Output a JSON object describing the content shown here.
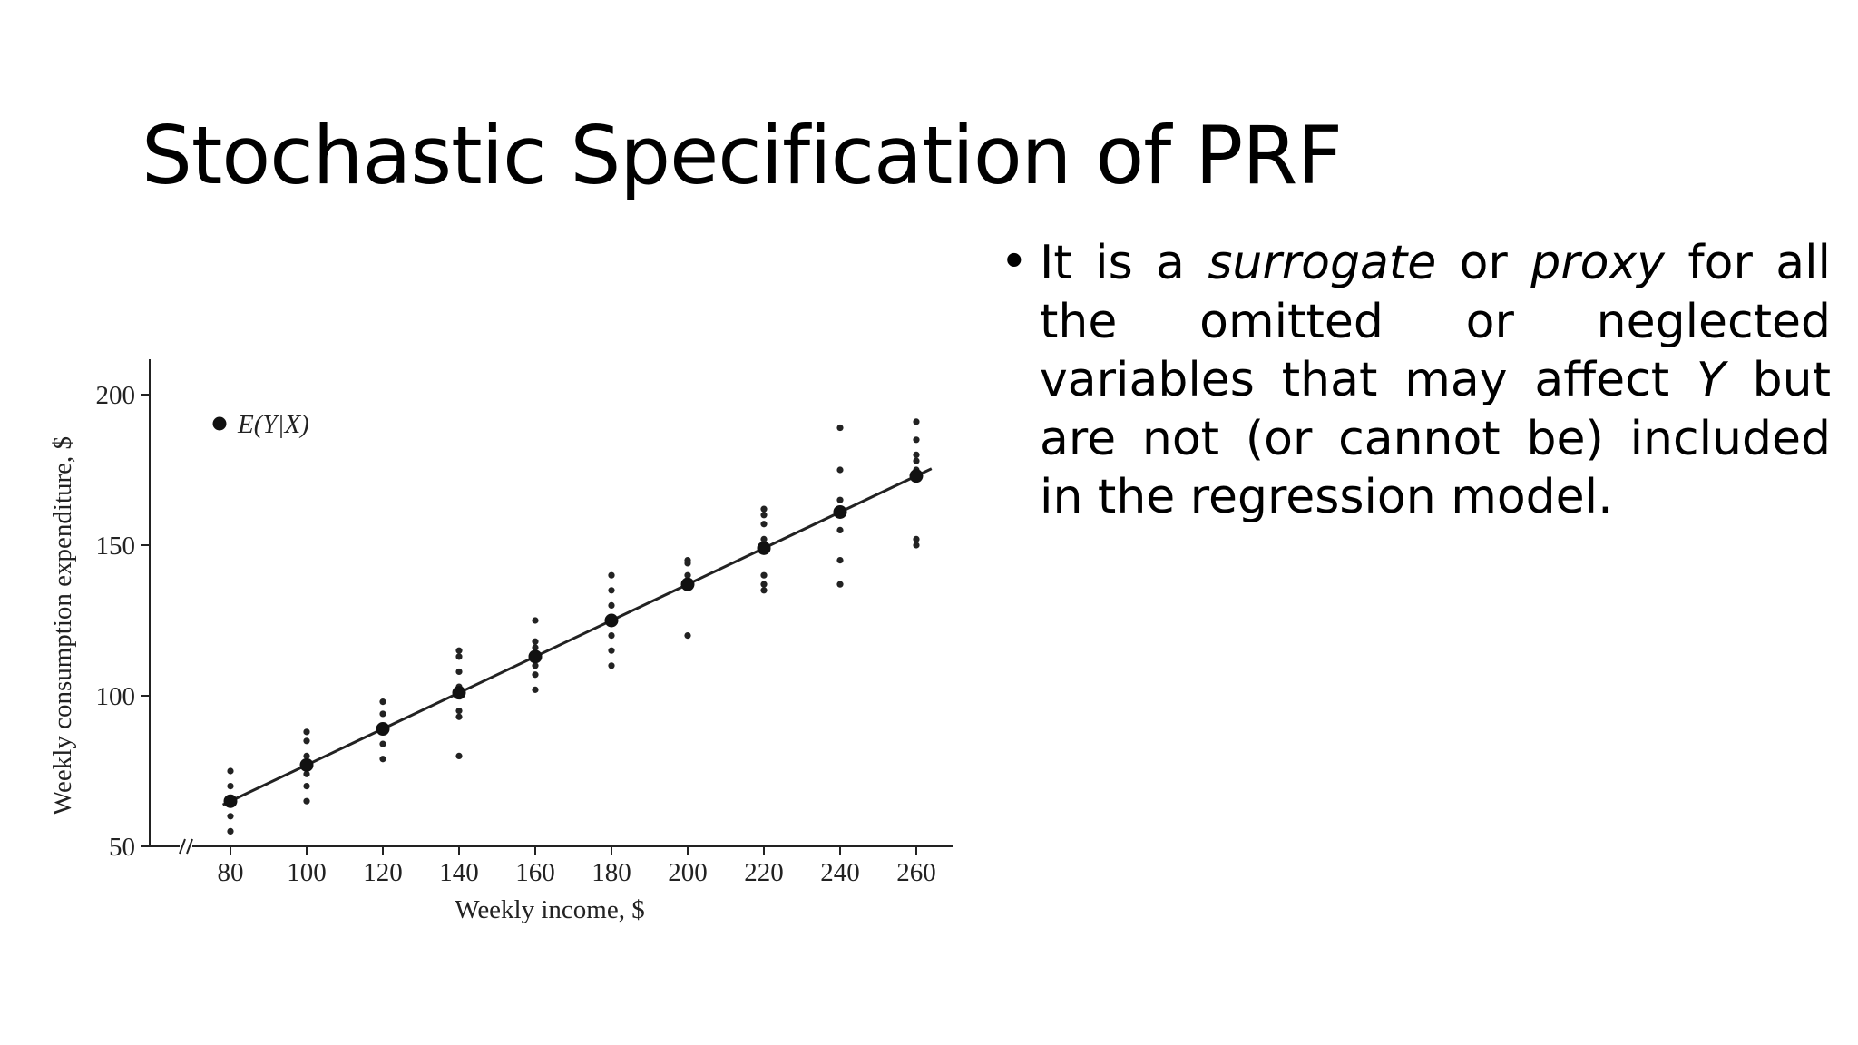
{
  "slide": {
    "title": "Stochastic Specification of PRF"
  },
  "bullet": {
    "segments": [
      {
        "text": "It is a ",
        "style": "normal"
      },
      {
        "text": "surrogate",
        "style": "italic"
      },
      {
        "text": " or ",
        "style": "normal"
      },
      {
        "text": "proxy",
        "style": "italic"
      },
      {
        "text": " for all the omitted or neglected variables that may affect ",
        "style": "normal"
      },
      {
        "text": "Y",
        "style": "italic"
      },
      {
        "text": " but are not (or cannot be) included in the regression model.",
        "style": "normal"
      }
    ]
  },
  "chart_data": {
    "type": "scatter",
    "xlabel": "Weekly income, $",
    "ylabel": "Weekly consumption expenditure, $",
    "xticks": [
      80,
      100,
      120,
      140,
      160,
      180,
      200,
      220,
      240,
      260
    ],
    "yticks": [
      50,
      100,
      150,
      200
    ],
    "xlim": [
      60,
      270
    ],
    "ylim": [
      50,
      210
    ],
    "axis_break": "x",
    "grid": false,
    "legend": {
      "label": "E(Y|X)",
      "placement": "top-left"
    },
    "series": [
      {
        "role": "observations",
        "points": [
          [
            80,
            55
          ],
          [
            80,
            60
          ],
          [
            80,
            65
          ],
          [
            80,
            70
          ],
          [
            80,
            75
          ],
          [
            100,
            65
          ],
          [
            100,
            70
          ],
          [
            100,
            74
          ],
          [
            100,
            80
          ],
          [
            100,
            85
          ],
          [
            100,
            88
          ],
          [
            120,
            79
          ],
          [
            120,
            84
          ],
          [
            120,
            90
          ],
          [
            120,
            94
          ],
          [
            120,
            98
          ],
          [
            140,
            80
          ],
          [
            140,
            93
          ],
          [
            140,
            95
          ],
          [
            140,
            103
          ],
          [
            140,
            108
          ],
          [
            140,
            113
          ],
          [
            140,
            115
          ],
          [
            160,
            102
          ],
          [
            160,
            107
          ],
          [
            160,
            110
          ],
          [
            160,
            116
          ],
          [
            160,
            118
          ],
          [
            160,
            125
          ],
          [
            180,
            110
          ],
          [
            180,
            115
          ],
          [
            180,
            120
          ],
          [
            180,
            130
          ],
          [
            180,
            135
          ],
          [
            180,
            140
          ],
          [
            200,
            120
          ],
          [
            200,
            136
          ],
          [
            200,
            140
          ],
          [
            200,
            144
          ],
          [
            200,
            145
          ],
          [
            220,
            135
          ],
          [
            220,
            137
          ],
          [
            220,
            140
          ],
          [
            220,
            152
          ],
          [
            220,
            157
          ],
          [
            220,
            160
          ],
          [
            220,
            162
          ],
          [
            240,
            137
          ],
          [
            240,
            145
          ],
          [
            240,
            155
          ],
          [
            240,
            165
          ],
          [
            240,
            175
          ],
          [
            240,
            189
          ],
          [
            260,
            150
          ],
          [
            260,
            152
          ],
          [
            260,
            175
          ],
          [
            260,
            178
          ],
          [
            260,
            180
          ],
          [
            260,
            185
          ],
          [
            260,
            191
          ]
        ]
      },
      {
        "role": "conditional_means",
        "name": "E(Y|X)",
        "points": [
          [
            80,
            65
          ],
          [
            100,
            77
          ],
          [
            120,
            89
          ],
          [
            140,
            101
          ],
          [
            160,
            113
          ],
          [
            180,
            125
          ],
          [
            200,
            137
          ],
          [
            220,
            149
          ],
          [
            240,
            161
          ],
          [
            260,
            173
          ]
        ]
      }
    ],
    "regression_line": {
      "intercept": 17,
      "slope": 0.6,
      "x_range": [
        78,
        264
      ]
    }
  }
}
